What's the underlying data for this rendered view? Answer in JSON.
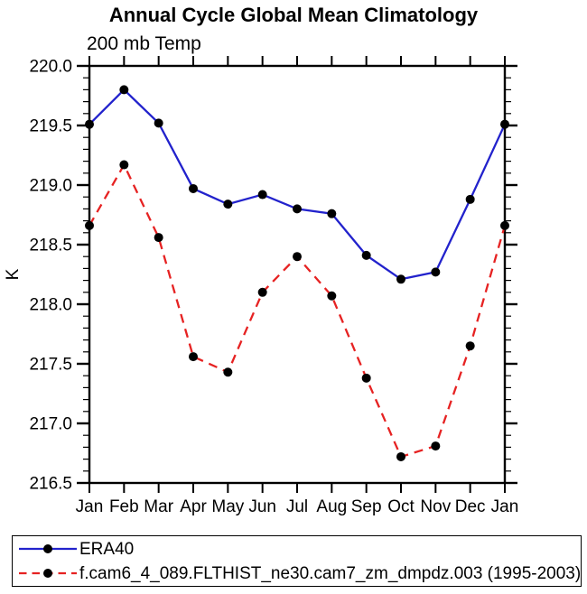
{
  "title": "Annual Cycle Global Mean Climatology",
  "subtitle": "200 mb Temp",
  "chart_data": {
    "type": "line",
    "categories": [
      "Jan",
      "Feb",
      "Mar",
      "Apr",
      "May",
      "Jun",
      "Jul",
      "Aug",
      "Sep",
      "Oct",
      "Nov",
      "Dec",
      "Jan"
    ],
    "xlabel": "",
    "ylabel": "K",
    "ylim": [
      216.5,
      220.0
    ],
    "ytick_step": 0.5,
    "yminor_step": 0.1,
    "ytick_format_decimals": 1,
    "grid": false,
    "legend_position": "bottom-box",
    "series": [
      {
        "name": "ERA40",
        "color": "#2222cc",
        "style": "solid",
        "marker": "filled-circle",
        "marker_color": "#000000",
        "values": [
          219.51,
          219.8,
          219.52,
          218.97,
          218.84,
          218.92,
          218.8,
          218.76,
          218.41,
          218.21,
          218.27,
          218.88,
          219.51
        ]
      },
      {
        "name": "f.cam6_4_089.FLTHIST_ne30.cam7_zm_dmpdz.003 (1995-2003)",
        "color": "#e62222",
        "style": "dashed",
        "marker": "filled-circle",
        "marker_color": "#000000",
        "values": [
          218.66,
          219.17,
          218.56,
          217.56,
          217.43,
          218.1,
          218.4,
          218.07,
          217.38,
          216.72,
          216.81,
          217.65,
          218.66
        ]
      }
    ]
  },
  "colors": {
    "axis": "#000000",
    "background": "#ffffff",
    "era40_line": "#2222cc",
    "model_line": "#e62222",
    "marker": "#000000"
  }
}
